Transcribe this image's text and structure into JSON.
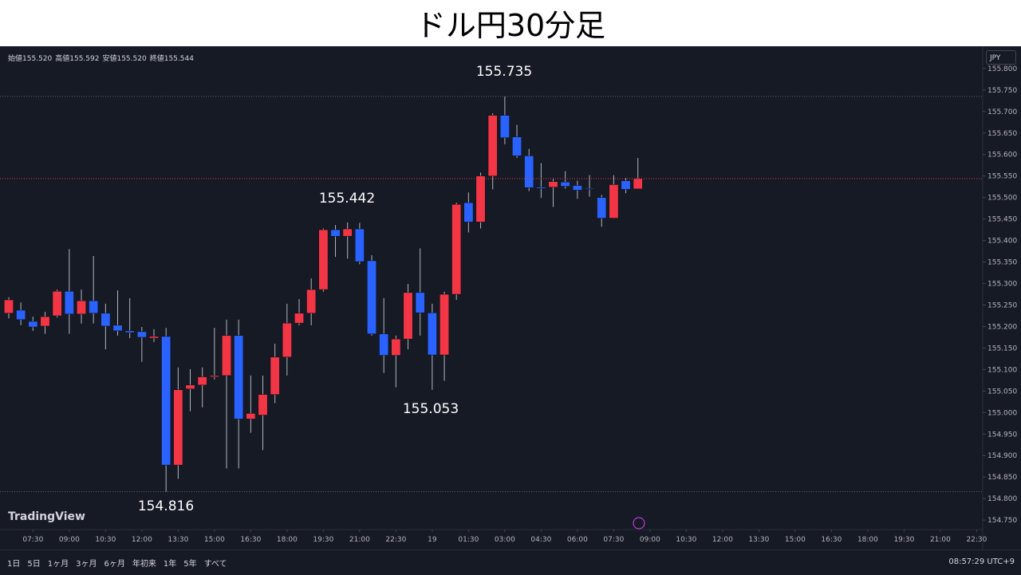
{
  "title": "ドル円30分足",
  "legend_ohlc": [
    {
      "label": "始値",
      "value": "155.520"
    },
    {
      "label": "高値",
      "value": "155.592"
    },
    {
      "label": "安値",
      "value": "155.520"
    },
    {
      "label": "終値",
      "value": "155.544"
    }
  ],
  "currency": "JPY",
  "logo": "TradingView",
  "range_buttons": [
    "1日",
    "5日",
    "1ヶ月",
    "3ヶ月",
    "6ヶ月",
    "年初来",
    "1年",
    "5年",
    "すべて"
  ],
  "clock": "08:57:29 UTC+9",
  "chart_data": {
    "type": "candlestick",
    "up_color": "#f23645",
    "down_color": "#2962ff",
    "grid": false,
    "x": [
      0,
      1,
      2,
      3,
      4,
      5,
      6,
      7,
      8,
      9,
      10,
      11,
      12,
      13,
      14,
      15,
      16,
      17,
      18,
      19,
      20,
      21,
      22,
      23,
      24,
      25,
      26,
      27,
      28,
      29,
      30,
      31,
      32,
      33,
      34,
      35,
      36,
      37,
      38,
      39,
      40,
      41,
      42,
      43,
      44,
      45,
      46,
      47,
      48,
      49,
      50,
      51,
      52
    ],
    "open": [
      155.231,
      155.238,
      155.212,
      155.201,
      155.225,
      155.282,
      155.229,
      155.26,
      155.231,
      155.203,
      155.19,
      155.188,
      155.173,
      155.177,
      154.878,
      155.055,
      155.064,
      155.083,
      155.086,
      155.179,
      154.985,
      154.994,
      155.042,
      155.129,
      155.208,
      155.231,
      155.286,
      155.425,
      155.41,
      155.427,
      155.353,
      155.183,
      155.133,
      155.171,
      155.279,
      155.232,
      155.134,
      155.275,
      155.488,
      155.443,
      155.55,
      155.691,
      155.641,
      155.597,
      155.524,
      155.524,
      155.536,
      155.528,
      155.521,
      155.5,
      155.452,
      155.539,
      155.52
    ],
    "high": [
      155.268,
      155.256,
      155.223,
      155.234,
      155.286,
      155.38,
      155.286,
      155.364,
      155.253,
      155.284,
      155.266,
      155.199,
      155.194,
      155.197,
      155.105,
      155.101,
      155.105,
      155.197,
      155.216,
      155.216,
      155.086,
      155.086,
      155.16,
      155.253,
      155.264,
      155.312,
      155.428,
      155.436,
      155.442,
      155.441,
      155.366,
      155.266,
      155.179,
      155.299,
      155.382,
      155.253,
      155.281,
      155.488,
      155.512,
      155.558,
      155.696,
      155.735,
      155.669,
      155.613,
      155.58,
      155.545,
      155.561,
      155.539,
      155.552,
      155.506,
      155.552,
      155.545,
      155.592
    ],
    "low": [
      155.219,
      155.203,
      155.19,
      155.183,
      155.221,
      155.183,
      155.207,
      155.207,
      155.147,
      155.179,
      155.173,
      155.118,
      155.164,
      154.816,
      154.846,
      155.003,
      155.012,
      155.077,
      154.87,
      154.87,
      154.953,
      154.913,
      155.022,
      155.086,
      155.203,
      155.203,
      155.281,
      155.362,
      155.358,
      155.345,
      155.179,
      155.092,
      155.059,
      155.147,
      155.179,
      155.053,
      155.074,
      155.262,
      155.419,
      155.428,
      155.519,
      155.624,
      155.592,
      155.515,
      155.499,
      155.478,
      155.521,
      155.497,
      155.502,
      155.432,
      155.452,
      155.51,
      155.52
    ],
    "close": [
      155.262,
      155.216,
      155.199,
      155.223,
      155.282,
      155.229,
      155.26,
      155.231,
      155.201,
      155.19,
      155.186,
      155.175,
      155.177,
      154.878,
      155.053,
      155.064,
      155.083,
      155.086,
      155.179,
      154.985,
      154.998,
      155.042,
      155.129,
      155.208,
      155.231,
      155.286,
      155.425,
      155.41,
      155.427,
      155.351,
      155.183,
      155.133,
      155.171,
      155.279,
      155.232,
      155.134,
      155.275,
      155.484,
      155.443,
      155.55,
      155.691,
      155.639,
      155.597,
      155.523,
      155.521,
      155.537,
      155.526,
      155.517,
      155.519,
      155.452,
      155.53,
      155.519,
      155.544
    ],
    "xlim": [
      -0.725,
      80.5
    ],
    "xticks": [
      {
        "value": 2,
        "label": "07:30"
      },
      {
        "value": 5,
        "label": "09:00"
      },
      {
        "value": 8,
        "label": "10:30"
      },
      {
        "value": 11,
        "label": "12:00"
      },
      {
        "value": 14,
        "label": "13:30"
      },
      {
        "value": 17,
        "label": "15:00"
      },
      {
        "value": 20,
        "label": "16:30"
      },
      {
        "value": 23,
        "label": "18:00"
      },
      {
        "value": 26,
        "label": "19:30"
      },
      {
        "value": 29,
        "label": "21:00"
      },
      {
        "value": 32,
        "label": "22:30"
      },
      {
        "value": 35,
        "label": "19"
      },
      {
        "value": 38,
        "label": "01:30"
      },
      {
        "value": 41,
        "label": "03:00"
      },
      {
        "value": 44,
        "label": "04:30"
      },
      {
        "value": 47,
        "label": "06:00"
      },
      {
        "value": 50,
        "label": "07:30"
      },
      {
        "value": 53,
        "label": "09:00"
      },
      {
        "value": 56,
        "label": "10:30"
      },
      {
        "value": 59,
        "label": "12:00"
      },
      {
        "value": 62,
        "label": "13:30"
      },
      {
        "value": 65,
        "label": "15:00"
      },
      {
        "value": 68,
        "label": "16:30"
      },
      {
        "value": 71,
        "label": "18:00"
      },
      {
        "value": 74,
        "label": "19:30"
      },
      {
        "value": 77,
        "label": "21:00"
      },
      {
        "value": 80,
        "label": "22:30"
      }
    ],
    "ylim": [
      154.728,
      155.848
    ],
    "yticks": [
      {
        "value": 154.75,
        "label": "154.750"
      },
      {
        "value": 154.8,
        "label": "154.800"
      },
      {
        "value": 154.85,
        "label": "154.850"
      },
      {
        "value": 154.9,
        "label": "154.900"
      },
      {
        "value": 154.95,
        "label": "154.950"
      },
      {
        "value": 155.0,
        "label": "155.000"
      },
      {
        "value": 155.05,
        "label": "155.050"
      },
      {
        "value": 155.1,
        "label": "155.100"
      },
      {
        "value": 155.15,
        "label": "155.150"
      },
      {
        "value": 155.2,
        "label": "155.200"
      },
      {
        "value": 155.25,
        "label": "155.250"
      },
      {
        "value": 155.3,
        "label": "155.300"
      },
      {
        "value": 155.35,
        "label": "155.350"
      },
      {
        "value": 155.4,
        "label": "155.400"
      },
      {
        "value": 155.45,
        "label": "155.450"
      },
      {
        "value": 155.5,
        "label": "155.500"
      },
      {
        "value": 155.55,
        "label": "155.550"
      },
      {
        "value": 155.6,
        "label": "155.600"
      },
      {
        "value": 155.65,
        "label": "155.650"
      },
      {
        "value": 155.7,
        "label": "155.700"
      },
      {
        "value": 155.75,
        "label": "155.750"
      },
      {
        "value": 155.8,
        "label": "155.800"
      }
    ],
    "annotations": [
      {
        "value": 155.735,
        "label": "155.735"
      },
      {
        "value": 155.442,
        "label": "155.442"
      },
      {
        "value": 155.053,
        "label": "155.053"
      },
      {
        "value": 154.816,
        "label": "154.816"
      }
    ]
  }
}
